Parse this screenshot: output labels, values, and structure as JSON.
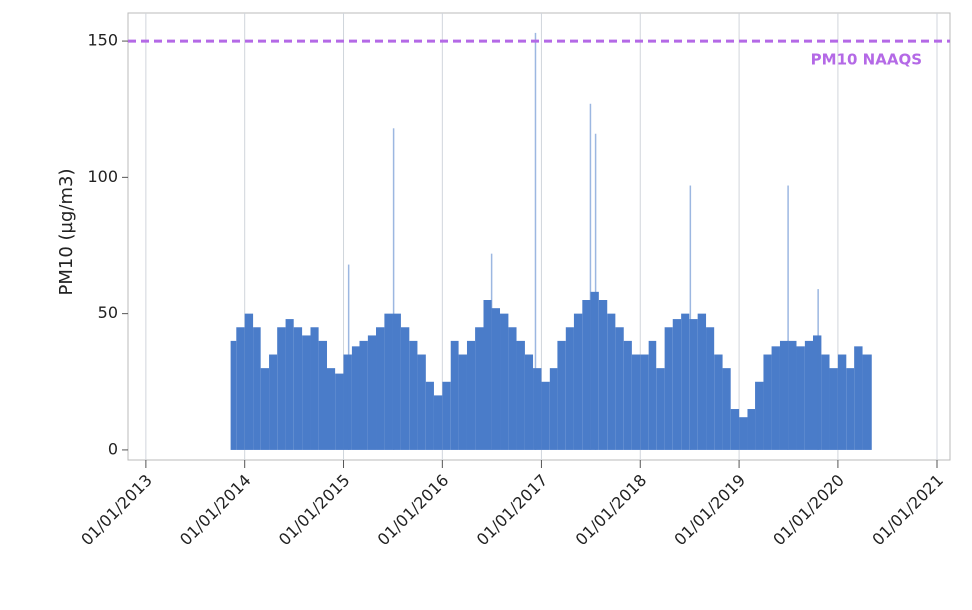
{
  "chart_data": {
    "type": "bar",
    "y_label": "PM10 (µg/m3)",
    "color": "#4a7cc9",
    "xlim": [
      "2012-10-27",
      "2021-02-18"
    ],
    "ylim": [
      -3.7,
      160.3
    ],
    "yticks": [
      0,
      50,
      100,
      150
    ],
    "xticks": [
      {
        "value": "2013-01-01",
        "label": "01/01/2013"
      },
      {
        "value": "2014-01-01",
        "label": "01/01/2014"
      },
      {
        "value": "2015-01-01",
        "label": "01/01/2015"
      },
      {
        "value": "2016-01-01",
        "label": "01/01/2016"
      },
      {
        "value": "2017-01-01",
        "label": "01/01/2017"
      },
      {
        "value": "2018-01-01",
        "label": "01/01/2018"
      },
      {
        "value": "2019-01-01",
        "label": "01/01/2019"
      },
      {
        "value": "2020-01-01",
        "label": "01/01/2020"
      },
      {
        "value": "2021-01-01",
        "label": "01/01/2021"
      }
    ],
    "grid": true,
    "reference_line": {
      "value": 150,
      "label": "PM10 NAAQS",
      "color": "#b469e6"
    },
    "x": [
      "2013-11-10",
      "2013-12-01",
      "2014-01-01",
      "2014-02-01",
      "2014-03-01",
      "2014-04-01",
      "2014-05-01",
      "2014-06-01",
      "2014-07-01",
      "2014-08-01",
      "2014-09-01",
      "2014-10-01",
      "2014-11-01",
      "2014-12-01",
      "2015-01-01",
      "2015-02-01",
      "2015-03-01",
      "2015-04-01",
      "2015-05-01",
      "2015-06-01",
      "2015-07-01",
      "2015-08-01",
      "2015-09-01",
      "2015-10-01",
      "2015-11-01",
      "2015-12-01",
      "2016-01-01",
      "2016-02-01",
      "2016-03-01",
      "2016-04-01",
      "2016-05-01",
      "2016-06-01",
      "2016-07-01",
      "2016-08-01",
      "2016-09-01",
      "2016-10-01",
      "2016-11-01",
      "2016-12-01",
      "2017-01-01",
      "2017-02-01",
      "2017-03-01",
      "2017-04-01",
      "2017-05-01",
      "2017-06-01",
      "2017-07-01",
      "2017-08-01",
      "2017-09-01",
      "2017-10-01",
      "2017-11-01",
      "2017-12-01",
      "2018-01-01",
      "2018-02-01",
      "2018-03-01",
      "2018-04-01",
      "2018-05-01",
      "2018-06-01",
      "2018-07-01",
      "2018-08-01",
      "2018-09-01",
      "2018-10-01",
      "2018-11-01",
      "2018-12-01",
      "2019-01-01",
      "2019-02-01",
      "2019-03-01",
      "2019-04-01",
      "2019-05-01",
      "2019-06-01",
      "2019-07-01",
      "2019-08-01",
      "2019-09-01",
      "2019-10-01",
      "2019-11-01",
      "2019-12-01",
      "2020-01-01",
      "2020-02-01",
      "2020-03-01",
      "2020-04-01",
      "2020-05-05"
    ],
    "values": [
      40,
      45,
      50,
      45,
      30,
      35,
      45,
      48,
      45,
      42,
      45,
      40,
      30,
      28,
      35,
      38,
      40,
      42,
      45,
      50,
      50,
      45,
      40,
      35,
      25,
      20,
      25,
      40,
      35,
      40,
      45,
      55,
      52,
      50,
      45,
      40,
      35,
      30,
      25,
      30,
      40,
      45,
      50,
      55,
      58,
      55,
      50,
      45,
      40,
      35,
      35,
      40,
      30,
      45,
      48,
      50,
      48,
      50,
      45,
      35,
      30,
      15,
      12,
      15,
      25,
      35,
      38,
      40,
      40,
      38,
      40,
      42,
      35,
      30,
      35,
      30,
      38,
      35,
      null
    ],
    "peaks_x": [
      "2015-01-20",
      "2015-07-05",
      "2016-07-01",
      "2016-12-10",
      "2017-07-01",
      "2017-07-20",
      "2018-07-05",
      "2019-07-01",
      "2019-10-20"
    ],
    "peaks_values": [
      68,
      118,
      72,
      153,
      127,
      116,
      97,
      97,
      59
    ]
  }
}
